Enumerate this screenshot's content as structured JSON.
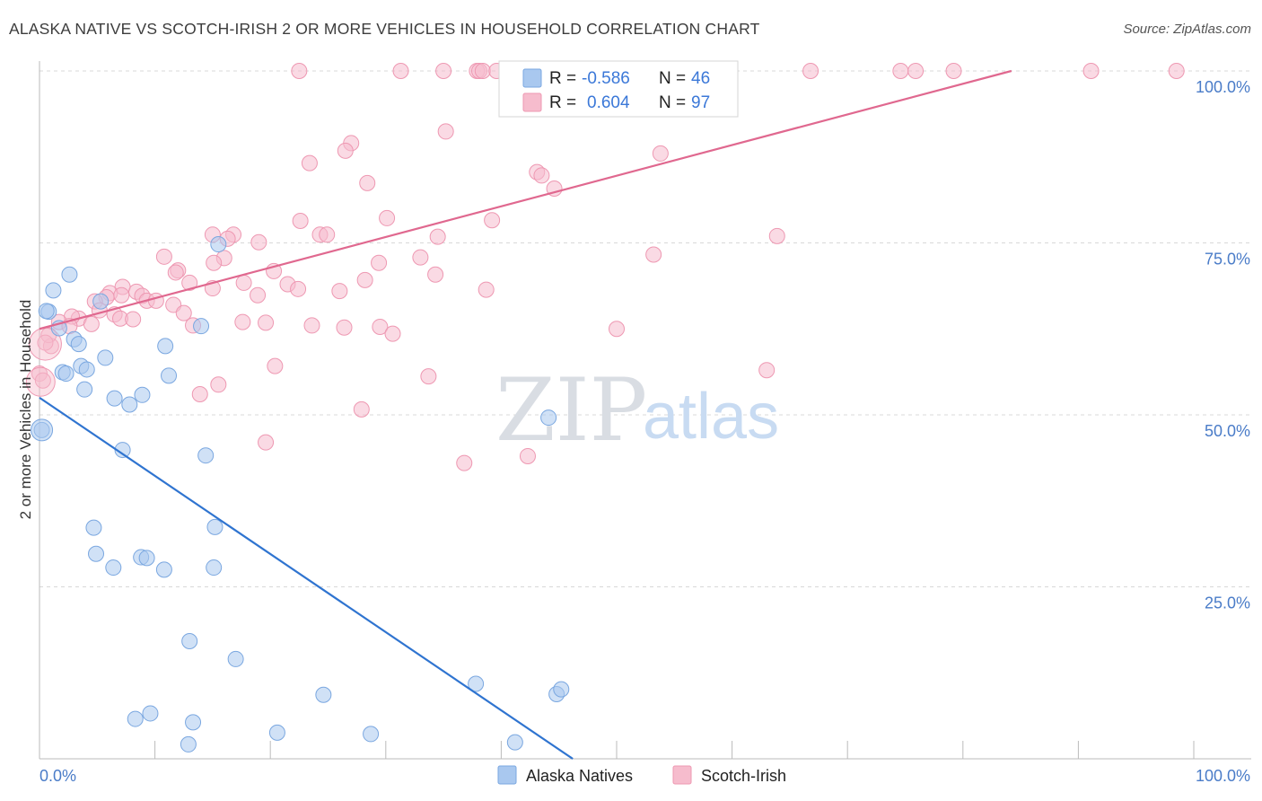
{
  "header": {
    "title": "ALASKA NATIVE VS SCOTCH-IRISH 2 OR MORE VEHICLES IN HOUSEHOLD CORRELATION CHART",
    "source": "Source: ZipAtlas.com"
  },
  "watermark": {
    "zip": "ZIP",
    "atlas": "atlas"
  },
  "colors": {
    "blue_fill": "#a9c8ef",
    "blue_stroke": "#7aa7e0",
    "blue_line": "#2f74d0",
    "pink_fill": "#f6bccd",
    "pink_stroke": "#ee98b2",
    "pink_line": "#e0688f",
    "grid": "#d8d8d8",
    "axis_text": "#4a7cc8"
  },
  "legend": {
    "rows": [
      {
        "r_label": "R =",
        "r_value": "-0.586",
        "n_label": "N =",
        "n_value": "46"
      },
      {
        "r_label": "R =",
        "r_value": "0.604",
        "n_label": "N =",
        "n_value": "97"
      }
    ]
  },
  "bottom_legend": {
    "series1": "Alaska Natives",
    "series2": "Scotch-Irish"
  },
  "chart_data": {
    "type": "scatter",
    "title": "ALASKA NATIVE VS SCOTCH-IRISH 2 OR MORE VEHICLES IN HOUSEHOLD CORRELATION CHART",
    "xlabel": "",
    "ylabel": "2 or more Vehicles in Household",
    "xlim": [
      0,
      100
    ],
    "ylim": [
      0,
      100
    ],
    "x_ticks": [
      0,
      10,
      20,
      30,
      40,
      50,
      60,
      70,
      80,
      90,
      100
    ],
    "x_tick_labels": [
      "0.0%",
      "",
      "",
      "",
      "",
      "",
      "",
      "",
      "",
      "",
      "100.0%"
    ],
    "y_ticks": [
      25,
      50,
      75,
      100
    ],
    "y_tick_labels": [
      "25.0%",
      "50.0%",
      "75.0%",
      "100.0%"
    ],
    "series": [
      {
        "name": "Alaska Natives",
        "r": -0.586,
        "n": 46,
        "trend": {
          "x0": 0,
          "y0": 52.5,
          "x1": 46.2,
          "y1": 0
        },
        "points": [
          [
            0.2,
            47.8
          ],
          [
            0.8,
            65
          ],
          [
            1.2,
            68.1
          ],
          [
            1.7,
            62.6
          ],
          [
            2,
            56.2
          ],
          [
            2.3,
            56
          ],
          [
            2.6,
            70.4
          ],
          [
            3,
            61
          ],
          [
            3.4,
            60.3
          ],
          [
            3.6,
            57.1
          ],
          [
            3.9,
            53.7
          ],
          [
            4.1,
            56.6
          ],
          [
            5.3,
            66.5
          ],
          [
            5.7,
            58.3
          ],
          [
            6.5,
            52.4
          ],
          [
            7.2,
            44.9
          ],
          [
            7.8,
            51.5
          ],
          [
            8.9,
            52.9
          ],
          [
            10.9,
            60
          ],
          [
            11.2,
            55.7
          ],
          [
            14,
            62.9
          ],
          [
            14.4,
            44.1
          ],
          [
            15.5,
            74.8
          ],
          [
            4.7,
            33.6
          ],
          [
            4.9,
            29.8
          ],
          [
            6.4,
            27.8
          ],
          [
            8.8,
            29.3
          ],
          [
            9.3,
            29.2
          ],
          [
            10.8,
            27.5
          ],
          [
            15.1,
            27.8
          ],
          [
            15.2,
            33.7
          ],
          [
            13,
            17.1
          ],
          [
            17,
            14.5
          ],
          [
            8.3,
            5.8
          ],
          [
            9.6,
            6.6
          ],
          [
            12.9,
            2.1
          ],
          [
            13.3,
            5.3
          ],
          [
            20.6,
            3.8
          ],
          [
            24.6,
            9.3
          ],
          [
            28.7,
            3.6
          ],
          [
            37.8,
            10.9
          ],
          [
            41.2,
            2.4
          ],
          [
            44.1,
            49.6
          ],
          [
            44.8,
            9.4
          ],
          [
            45.2,
            10.1
          ],
          [
            0.6,
            65.1
          ]
        ]
      },
      {
        "name": "Scotch-Irish",
        "r": 0.604,
        "n": 97,
        "trend": {
          "x0": 0,
          "y0": 62.5,
          "x1": 84.2,
          "y1": 100
        },
        "points": [
          [
            22.5,
            100
          ],
          [
            31.3,
            100
          ],
          [
            35,
            100
          ],
          [
            37.9,
            100
          ],
          [
            38.1,
            100
          ],
          [
            38.4,
            100
          ],
          [
            39.6,
            100
          ],
          [
            40.5,
            100
          ],
          [
            55.9,
            100
          ],
          [
            56.7,
            100
          ],
          [
            66.8,
            100
          ],
          [
            74.6,
            100
          ],
          [
            75.9,
            100
          ],
          [
            79.2,
            100
          ],
          [
            91.1,
            100
          ],
          [
            98.5,
            100
          ],
          [
            35.2,
            91.2
          ],
          [
            27,
            89.5
          ],
          [
            26.5,
            88.4
          ],
          [
            23.4,
            86.6
          ],
          [
            53.8,
            88
          ],
          [
            43.1,
            85.3
          ],
          [
            43.5,
            84.8
          ],
          [
            28.4,
            83.7
          ],
          [
            44.6,
            82.9
          ],
          [
            30.1,
            78.6
          ],
          [
            39.2,
            78.3
          ],
          [
            22.6,
            78.2
          ],
          [
            24.3,
            76.2
          ],
          [
            24.9,
            76.2
          ],
          [
            15,
            76.2
          ],
          [
            16.8,
            76.2
          ],
          [
            16.3,
            75.6
          ],
          [
            19,
            75.1
          ],
          [
            34.5,
            75.9
          ],
          [
            63.9,
            76
          ],
          [
            53.2,
            73.3
          ],
          [
            10.8,
            73
          ],
          [
            16,
            72.8
          ],
          [
            29.4,
            72.1
          ],
          [
            33,
            72.9
          ],
          [
            15.1,
            72.1
          ],
          [
            12,
            71
          ],
          [
            11.8,
            70.7
          ],
          [
            20.3,
            70.9
          ],
          [
            34.3,
            70.4
          ],
          [
            13,
            69.2
          ],
          [
            17.7,
            69.2
          ],
          [
            21.5,
            69
          ],
          [
            28.2,
            69.6
          ],
          [
            38.7,
            68.2
          ],
          [
            22.4,
            68.3
          ],
          [
            26,
            68
          ],
          [
            15,
            68.4
          ],
          [
            7.2,
            68.6
          ],
          [
            8.4,
            67.9
          ],
          [
            6.1,
            67.7
          ],
          [
            7.1,
            67.4
          ],
          [
            5.8,
            67.1
          ],
          [
            8.9,
            67.3
          ],
          [
            9.3,
            66.6
          ],
          [
            18.9,
            67.4
          ],
          [
            4.8,
            66.5
          ],
          [
            10.1,
            66.6
          ],
          [
            11.6,
            66
          ],
          [
            12.5,
            64.8
          ],
          [
            6.5,
            64.6
          ],
          [
            5.2,
            65.2
          ],
          [
            3.4,
            64
          ],
          [
            2.8,
            64.3
          ],
          [
            1.7,
            63.5
          ],
          [
            2.6,
            62.9
          ],
          [
            4.5,
            63.2
          ],
          [
            17.6,
            63.5
          ],
          [
            19.6,
            63.4
          ],
          [
            7,
            64
          ],
          [
            8.1,
            63.9
          ],
          [
            13.3,
            63
          ],
          [
            23.6,
            63
          ],
          [
            26.4,
            62.7
          ],
          [
            29.5,
            62.8
          ],
          [
            30.6,
            61.8
          ],
          [
            50,
            62.5
          ],
          [
            1,
            60
          ],
          [
            0.8,
            61.6
          ],
          [
            0,
            56
          ],
          [
            0.3,
            55
          ],
          [
            15.5,
            54.4
          ],
          [
            20.4,
            57.1
          ],
          [
            33.7,
            55.6
          ],
          [
            63,
            56.5
          ],
          [
            13.9,
            53
          ],
          [
            27.9,
            50.8
          ],
          [
            19.6,
            46
          ],
          [
            36.8,
            43
          ],
          [
            42.3,
            44
          ],
          [
            0.5,
            60.5
          ]
        ]
      }
    ]
  }
}
